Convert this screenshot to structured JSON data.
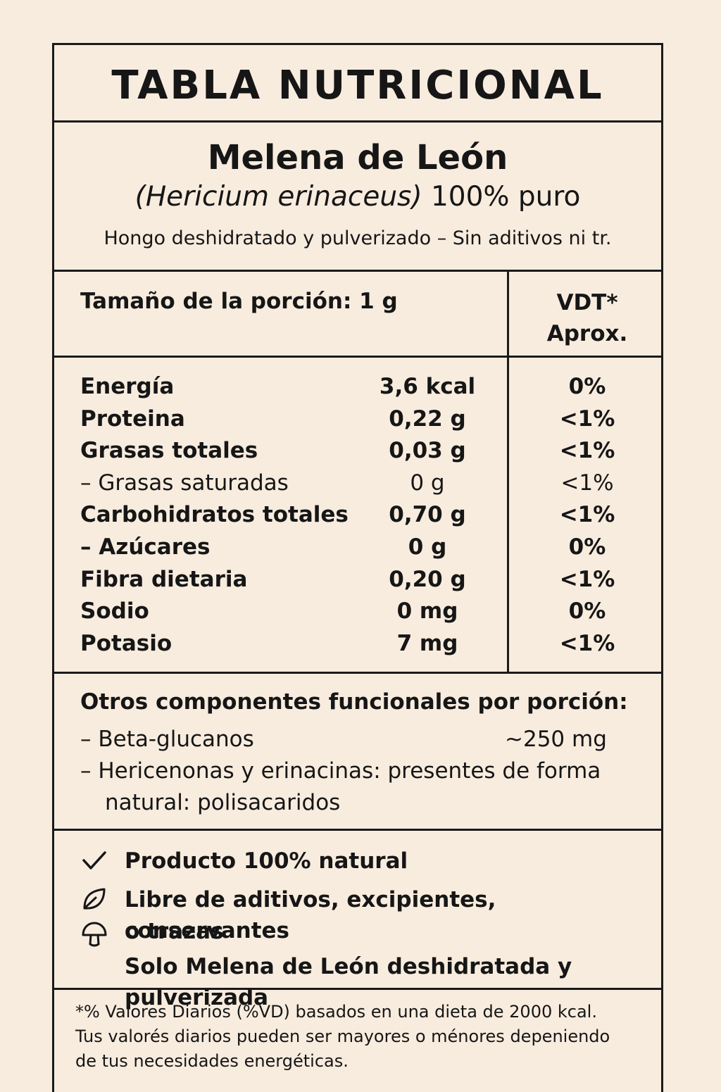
{
  "title": "TABLA NUTRICIONAL",
  "product": {
    "name": "Melena de León",
    "scientific": "(Hericium erinaceus)",
    "purity": "100% puro",
    "description": "Hongo deshidratado y pulverizado – Sin aditivos ni tr."
  },
  "serving": "Tamaño de la porción: 1 g",
  "vdt": {
    "line1": "VDT*",
    "line2": "Aprox."
  },
  "nutrients": [
    {
      "name": "Energía",
      "amount": "3,6 kcal",
      "dv": "0%"
    },
    {
      "name": "Proteina",
      "amount": "0,22 g",
      "dv": "<1%"
    },
    {
      "name": "Grasas totales",
      "amount": "0,03 g",
      "dv": "<1%"
    },
    {
      "name": "– Grasas saturadas",
      "amount": "0 g",
      "dv": "<1%"
    },
    {
      "name": "Carbohidratos totales",
      "amount": "0,70 g",
      "dv": "<1%"
    },
    {
      "name": "– Azúcares",
      "amount": "0 g",
      "dv": "0%"
    },
    {
      "name": "Fibra dietaria",
      "amount": "0,20 g",
      "dv": "<1%"
    },
    {
      "name": "Sodio",
      "amount": "0 mg",
      "dv": "0%"
    },
    {
      "name": "Potasio",
      "amount": "7 mg",
      "dv": "<1%"
    }
  ],
  "functional": {
    "title": "Otros componentes funcionales por porción:",
    "beta_label": "– Beta-glucanos",
    "beta_value": "~250 mg",
    "hericenones_line1": "– Hericenonas y erinacinas: presentes de forma",
    "hericenones_line2": "natural: polisacaridos"
  },
  "features": {
    "natural": "Producto 100% natural",
    "free_line1": "Libre de aditivos, excipientes, conservantes",
    "free_line2": "o trazas",
    "only": "Solo Melena de León deshidratada y pulverizada"
  },
  "icons": [
    "check-icon",
    "leaf-icon",
    "mushroom-icon"
  ],
  "footnote": {
    "line1": "*% Valores Diarios (%VD) basados en una dieta de 2000 kcal.",
    "line2": "Tus valorés diarios pueden ser mayores o ménores depeniendo",
    "line3": "de tus necesidades energéticas."
  },
  "colors": {
    "background": "#f8ecdf",
    "ink": "#161616"
  }
}
